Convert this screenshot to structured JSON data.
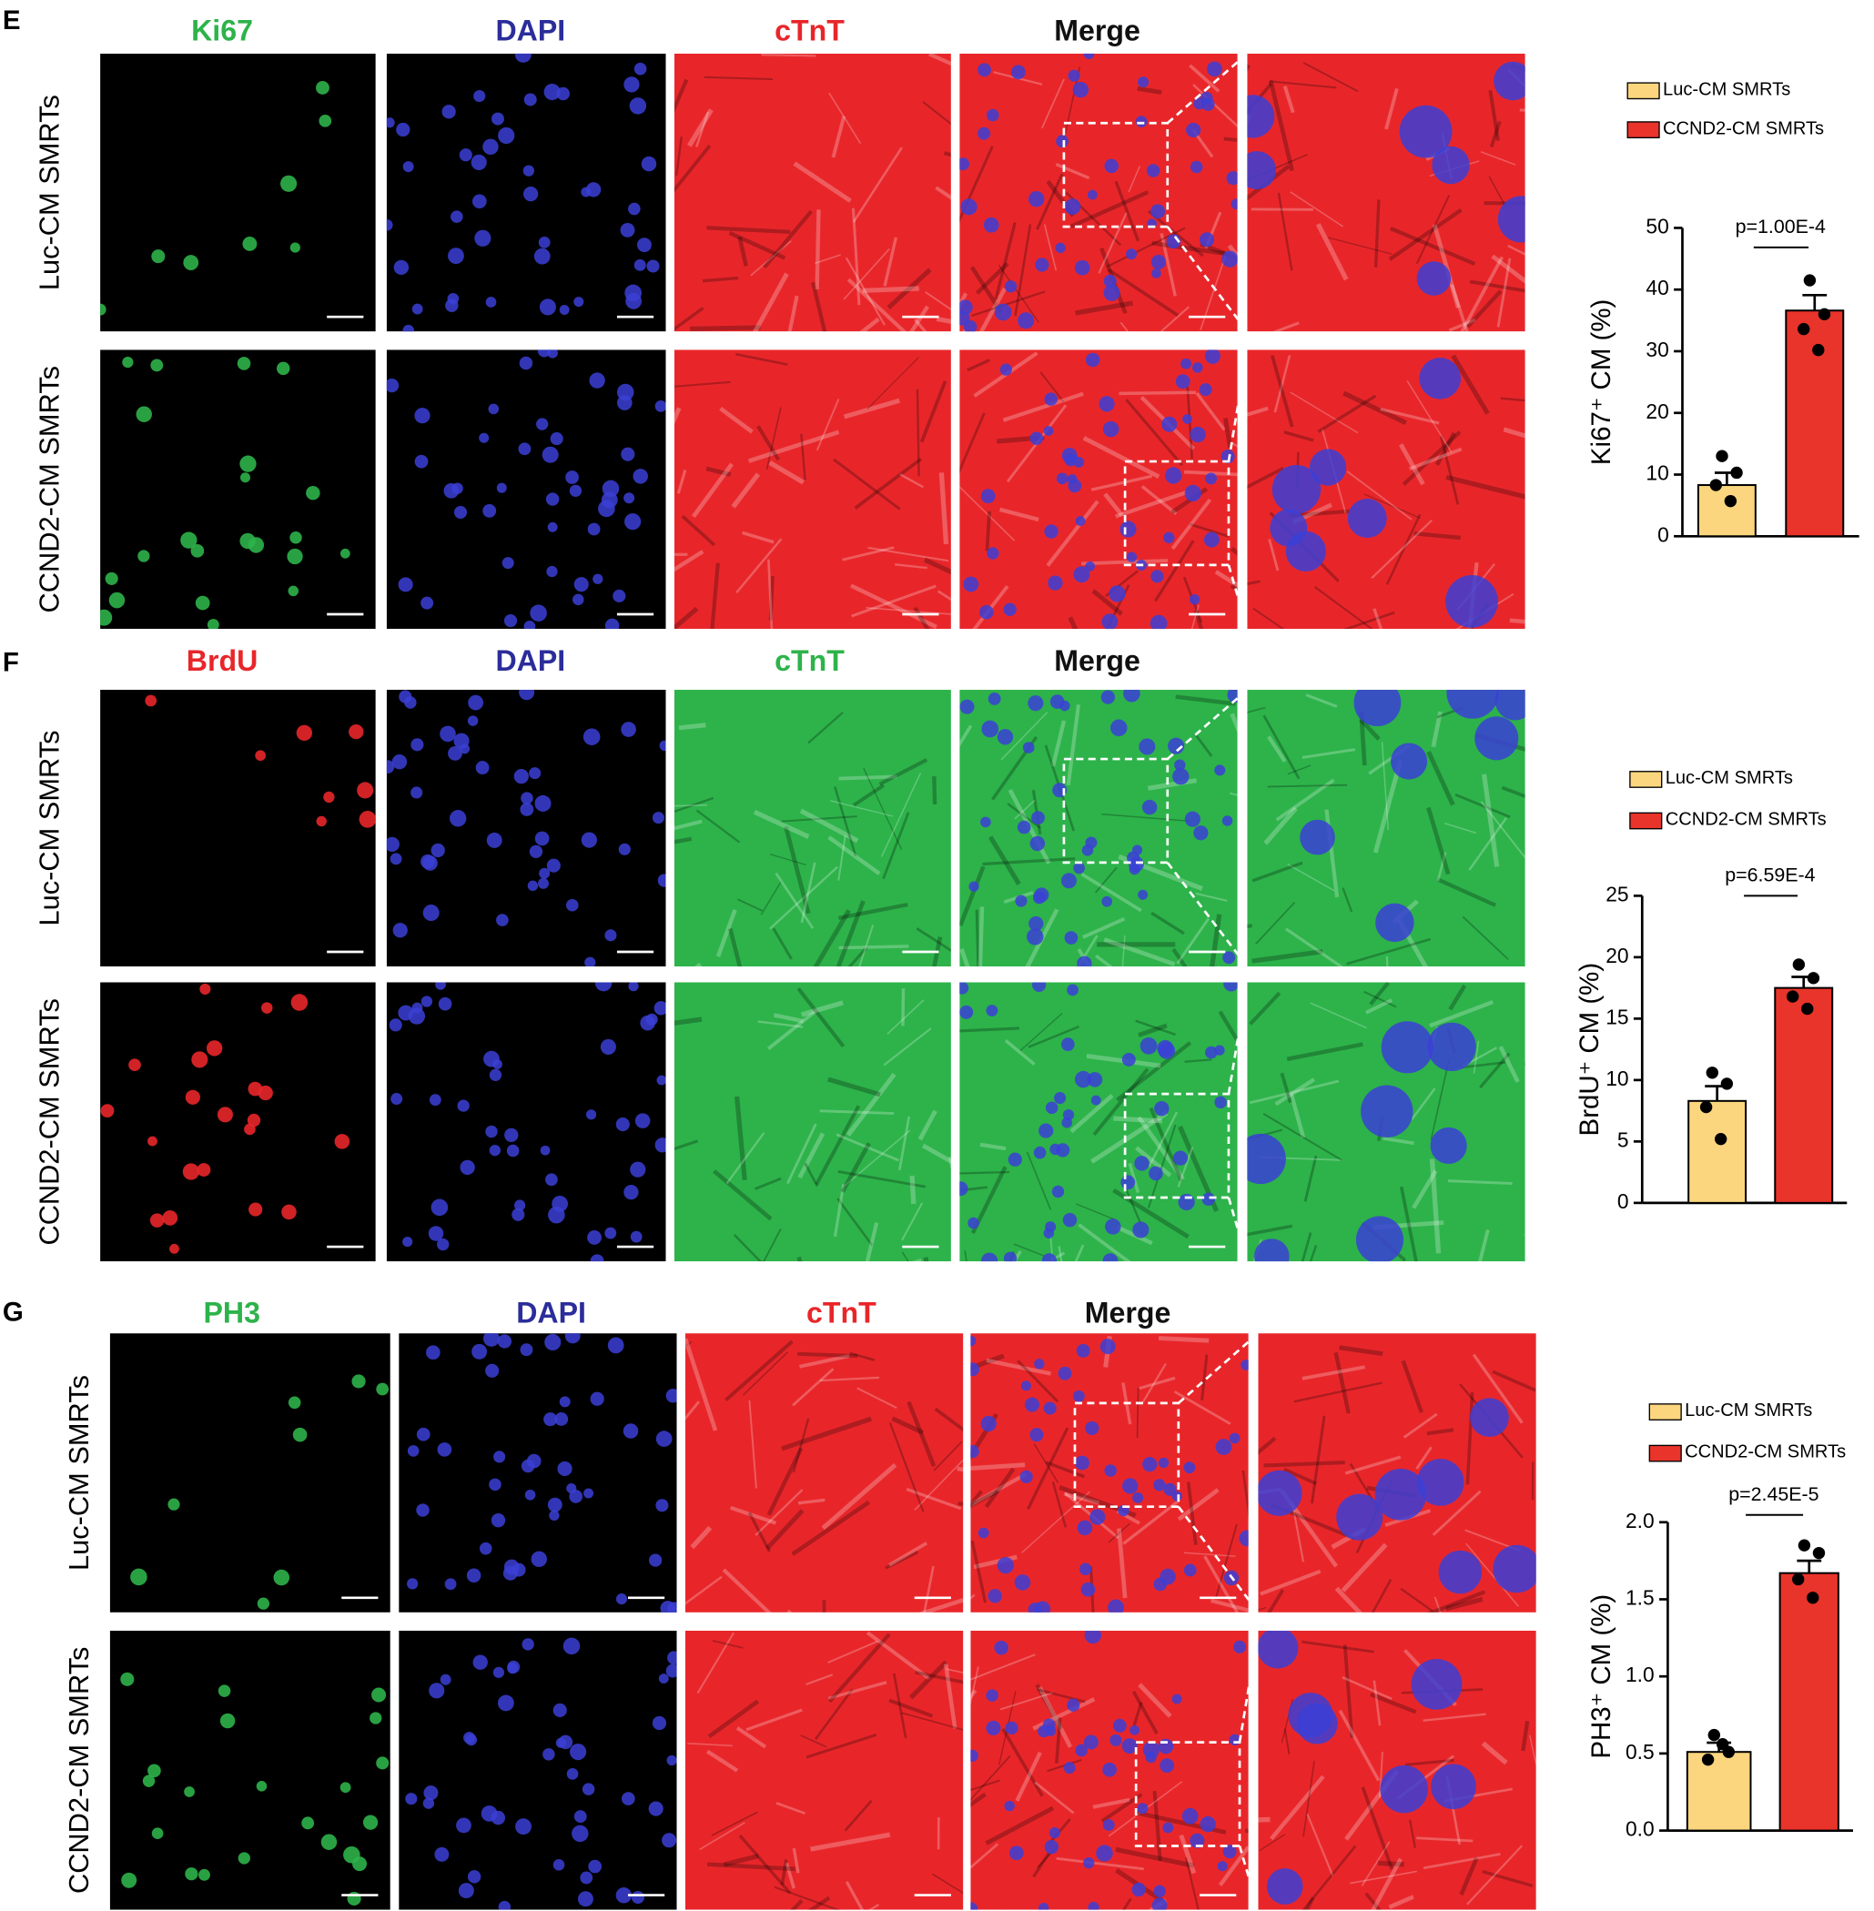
{
  "panels": [
    {
      "letter": "E",
      "channels": [
        {
          "name": "Ki67",
          "color": "#2db34a"
        },
        {
          "name": "DAPI",
          "color": "#2b2d9b"
        },
        {
          "name": "cTnT",
          "color": "#e8262a"
        },
        {
          "name": "Merge",
          "color": "#111111"
        }
      ],
      "rows": [
        "Luc-CM SMRTs",
        "CCND2-CM SMRTs"
      ]
    },
    {
      "letter": "F",
      "channels": [
        {
          "name": "BrdU",
          "color": "#e8262a"
        },
        {
          "name": "DAPI",
          "color": "#2b2d9b"
        },
        {
          "name": "cTnT",
          "color": "#2db34a"
        },
        {
          "name": "Merge",
          "color": "#111111"
        }
      ],
      "rows": [
        "Luc-CM SMRTs",
        "CCND2-CM SMRTs"
      ]
    },
    {
      "letter": "G",
      "channels": [
        {
          "name": "PH3",
          "color": "#2db34a"
        },
        {
          "name": "DAPI",
          "color": "#2b2d9b"
        },
        {
          "name": "cTnT",
          "color": "#e8262a"
        },
        {
          "name": "Merge",
          "color": "#111111"
        }
      ],
      "rows": [
        "Luc-CM SMRTs",
        "CCND2-CM SMRTs"
      ]
    }
  ],
  "chart_data": [
    {
      "type": "bar",
      "y_label": "Ki67⁺ CM (%)",
      "annotation": "p=1.00E-4",
      "ylim": [
        0,
        50
      ],
      "yticks": [
        0,
        10,
        20,
        30,
        40,
        50
      ],
      "series": [
        {
          "name": "Luc-CM SMRTs",
          "color": "#fbd67e",
          "values": [
            8.3
          ],
          "errors": [
            2.0
          ],
          "points": [
            13,
            10.3,
            8.3,
            5.7
          ]
        },
        {
          "name": "CCND2-CM SMRTs",
          "color": "#e8342a",
          "values": [
            36.6
          ],
          "errors": [
            2.5
          ],
          "points": [
            41.5,
            36,
            33.6,
            30.2
          ]
        }
      ]
    },
    {
      "type": "bar",
      "y_label": "BrdU⁺ CM (%)",
      "annotation": "p=6.59E-4",
      "ylim": [
        0,
        25
      ],
      "yticks": [
        0,
        5,
        10,
        15,
        20,
        25
      ],
      "series": [
        {
          "name": "Luc-CM SMRTs",
          "color": "#fbd67e",
          "values": [
            8.3
          ],
          "errors": [
            1.2
          ],
          "points": [
            10.6,
            9.7,
            7.8,
            5.2
          ]
        },
        {
          "name": "CCND2-CM SMRTs",
          "color": "#e8342a",
          "values": [
            17.5
          ],
          "errors": [
            0.9
          ],
          "points": [
            19.4,
            18.3,
            16.8,
            15.8
          ]
        }
      ]
    },
    {
      "type": "bar",
      "y_label": "PH3⁺ CM (%)",
      "annotation": "p=2.45E-5",
      "ylim": [
        0,
        2
      ],
      "yticks": [
        {
          "value": 0,
          "label": "0.0"
        },
        0.5,
        {
          "value": 1,
          "label": "1.0"
        },
        1.5,
        {
          "value": 2,
          "label": "2.0"
        }
      ],
      "series": [
        {
          "name": "Luc-CM SMRTs",
          "color": "#fbd67e",
          "values": [
            0.51
          ],
          "errors": [
            0.06
          ],
          "points": [
            0.62,
            0.51,
            0.46,
            0.56
          ]
        },
        {
          "name": "CCND2-CM SMRTs",
          "color": "#e8342a",
          "values": [
            1.67
          ],
          "errors": [
            0.08
          ],
          "points": [
            1.85,
            1.8,
            1.63,
            1.51
          ]
        }
      ]
    }
  ]
}
